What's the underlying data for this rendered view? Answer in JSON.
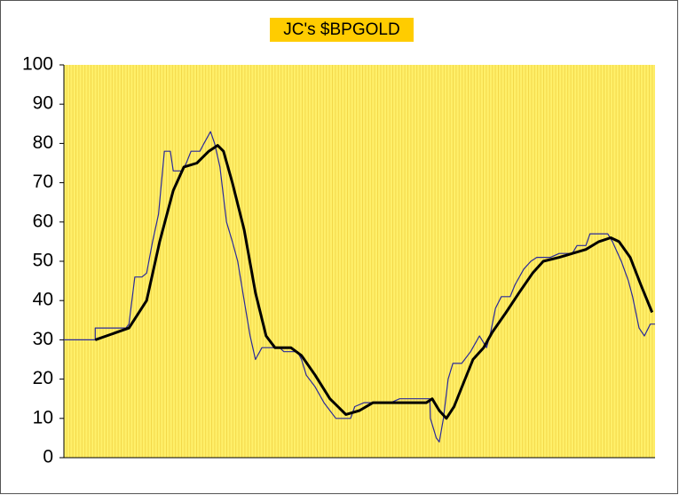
{
  "chart_data": {
    "type": "line",
    "title": "JC's $BPGOLD",
    "xlim": [
      0,
      100
    ],
    "ylim": [
      0,
      100
    ],
    "yticks": [
      0,
      10,
      20,
      30,
      40,
      50,
      60,
      70,
      80,
      90,
      100
    ],
    "series": [
      {
        "color": "#2a2a9a",
        "width": 1.2,
        "x": [
          0,
          5.3,
          5.3,
          10.5,
          11,
          11.5,
          12,
          13.2,
          14,
          15,
          16,
          16.5,
          17,
          18,
          18.5,
          20,
          20.7,
          21.5,
          23,
          23.7,
          24.8,
          25.5,
          26.4,
          27.5,
          28.5,
          29.4,
          30.5,
          31.5,
          32.4,
          33.5,
          36.5,
          37.2,
          39.5,
          40.2,
          41,
          42.5,
          44,
          46,
          48.5,
          49.2,
          50.8,
          55.3,
          56.8,
          61.9,
          62,
          63,
          63.5,
          64.2,
          65,
          65.8,
          67.3,
          68.8,
          70.3,
          71.5,
          72.2,
          73,
          74,
          75.5,
          76.3,
          77.8,
          79,
          80,
          82.3,
          83.8,
          86,
          86.8,
          88.3,
          89,
          92,
          92.8,
          94.3,
          95.5,
          96.2,
          97.3,
          98.2,
          99.2,
          100
        ],
        "values": [
          30,
          30,
          33,
          33,
          34,
          40,
          46,
          46,
          47,
          55,
          62,
          70,
          78,
          78,
          73,
          73,
          75,
          78,
          78,
          80,
          83,
          80,
          74,
          60,
          55,
          50,
          40,
          31,
          25,
          28,
          28,
          27,
          27,
          25,
          21,
          18,
          14,
          10,
          10,
          13,
          14,
          14,
          15,
          15,
          10,
          5,
          4,
          10,
          20,
          24,
          24,
          27,
          31,
          28,
          32,
          38,
          41,
          41,
          44,
          48,
          50,
          51,
          51,
          52,
          52,
          54,
          54,
          57,
          57,
          55,
          50,
          45,
          41,
          33,
          31,
          34,
          34
        ]
      },
      {
        "color": "#000000",
        "width": 3,
        "x": [
          5.3,
          11,
          14,
          16.2,
          18.5,
          20.3,
          22.5,
          24.5,
          26,
          27,
          28.5,
          30.5,
          32.4,
          34.2,
          35.7,
          38.4,
          40.2,
          42.5,
          45,
          47.7,
          50,
          52.3,
          61.3,
          62.3,
          63.5,
          64.7,
          66,
          67.6,
          69.2,
          71,
          72.5,
          74.8,
          77,
          79.3,
          81.1,
          83.8,
          86,
          88.3,
          90.5,
          92.5,
          93.9,
          95.8,
          97.6,
          99.5
        ],
        "values": [
          30,
          33,
          40,
          55,
          68,
          74,
          75,
          78,
          79.5,
          78,
          70,
          58,
          42,
          31,
          28,
          28,
          26,
          21,
          15,
          11,
          12,
          14,
          14,
          15,
          12,
          10,
          13,
          19,
          25,
          28,
          32,
          37,
          42,
          47,
          50,
          51,
          52,
          53,
          55,
          56,
          55,
          51,
          44,
          37
        ]
      }
    ]
  }
}
